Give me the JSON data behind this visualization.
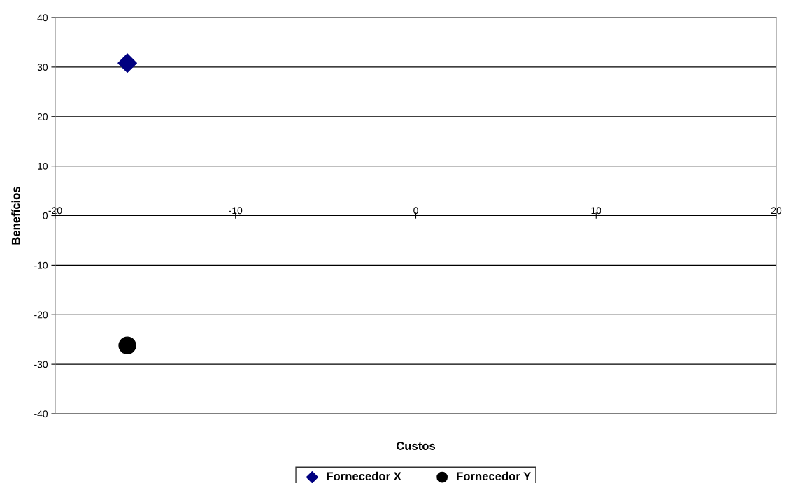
{
  "chart_data": {
    "type": "scatter",
    "xlabel": "Custos",
    "ylabel": "Benefícios",
    "series": [
      {
        "name": "Fornecedor X",
        "color": "#000080",
        "x": [
          -16
        ],
        "values": [
          30.8
        ],
        "marker": "diamond"
      },
      {
        "name": "Fornecedor Y",
        "color": "#000000",
        "x": [
          -16
        ],
        "values": [
          -26.2
        ],
        "marker": "circle"
      }
    ],
    "xlim": [
      -20,
      20
    ],
    "xticks": [
      -20,
      -10,
      0,
      10,
      20
    ],
    "ylim": [
      -40,
      40
    ],
    "yticks": [
      -40,
      -30,
      -20,
      -10,
      0,
      10,
      20,
      30,
      40
    ],
    "grid": "y",
    "legend": "bottom"
  }
}
